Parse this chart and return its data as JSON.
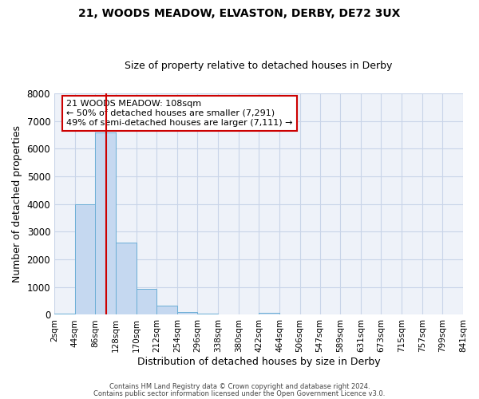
{
  "title1": "21, WOODS MEADOW, ELVASTON, DERBY, DE72 3UX",
  "title2": "Size of property relative to detached houses in Derby",
  "xlabel": "Distribution of detached houses by size in Derby",
  "ylabel": "Number of detached properties",
  "bin_edges": [
    2,
    44,
    86,
    128,
    170,
    212,
    254,
    296,
    338,
    380,
    422,
    464,
    506,
    547,
    589,
    631,
    673,
    715,
    757,
    799,
    841
  ],
  "bar_heights": [
    50,
    4000,
    6600,
    2600,
    950,
    330,
    100,
    50,
    0,
    0,
    80,
    0,
    0,
    0,
    0,
    0,
    0,
    0,
    0,
    0
  ],
  "bar_color": "#c5d8f0",
  "bar_edge_color": "#6baed6",
  "vline_x": 108,
  "vline_color": "#cc0000",
  "ylim": [
    0,
    8000
  ],
  "yticks": [
    0,
    1000,
    2000,
    3000,
    4000,
    5000,
    6000,
    7000,
    8000
  ],
  "grid_color": "#c8d4e8",
  "bg_color": "#eef2f9",
  "annotation_box_text": "21 WOODS MEADOW: 108sqm\n← 50% of detached houses are smaller (7,291)\n49% of semi-detached houses are larger (7,111) →",
  "annotation_box_color": "#cc0000",
  "footer1": "Contains HM Land Registry data © Crown copyright and database right 2024.",
  "footer2": "Contains public sector information licensed under the Open Government Licence v3.0."
}
